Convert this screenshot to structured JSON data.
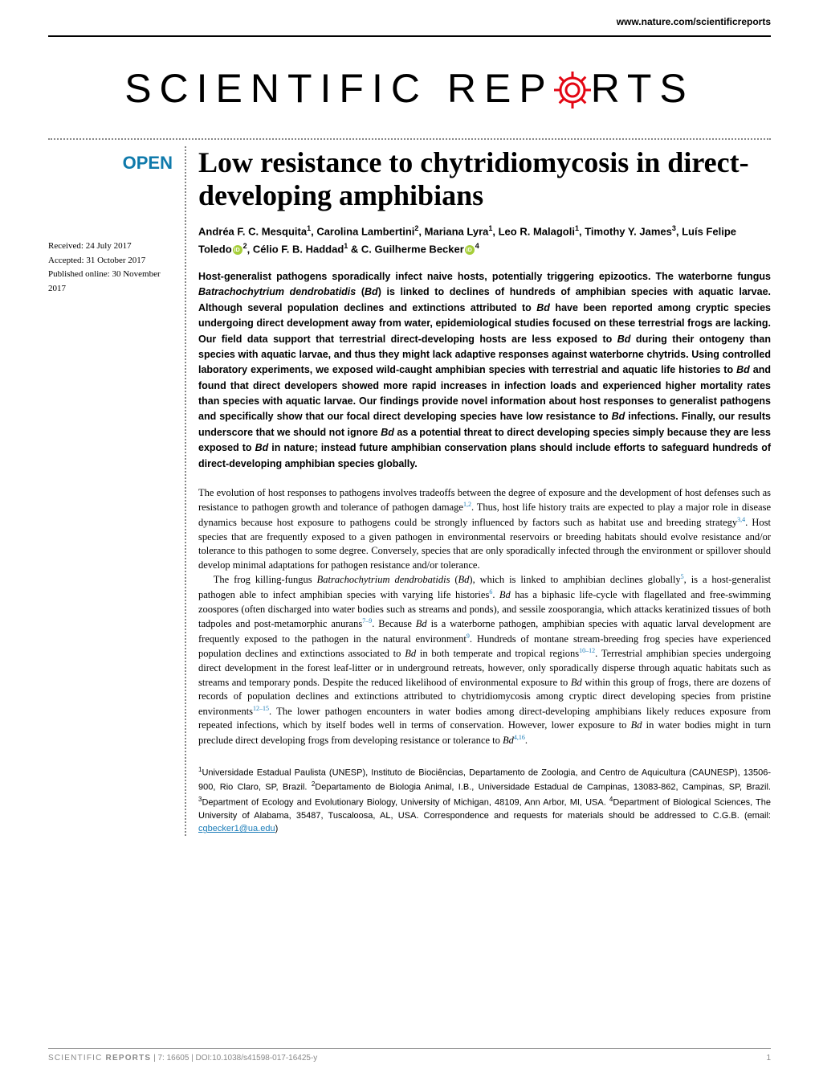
{
  "header": {
    "url": "www.nature.com/scientificreports"
  },
  "logo": {
    "part1": "SCIENTIFIC ",
    "part2": "REP",
    "part3": "RTS",
    "gear_color": "#e30613"
  },
  "open_badge": "OPEN",
  "meta": {
    "received": "Received: 24 July 2017",
    "accepted": "Accepted: 31 October 2017",
    "published": "Published online: 30 November 2017"
  },
  "title": "Low resistance to chytridiomycosis in direct-developing amphibians",
  "authors_html": "Andréa F. C. Mesquita<sup>1</sup>, Carolina Lambertini<sup>2</sup>, Mariana Lyra<sup>1</sup>, Leo R. Malagoli<sup>1</sup>, Timothy Y. James<sup>3</sup>, Luís Felipe Toledo<span class=\"orcid\"></span><sup>2</sup>, Célio F. B. Haddad<sup>1</sup> & C. Guilherme Becker<span class=\"orcid\"></span><sup>4</sup>",
  "abstract": "Host-generalist pathogens sporadically infect naive hosts, potentially triggering epizootics. The waterborne fungus <em>Batrachochytrium dendrobatidis</em> (<em>Bd</em>) is linked to declines of hundreds of amphibian species with aquatic larvae. Although several population declines and extinctions attributed to <em>Bd</em> have been reported among cryptic species undergoing direct development away from water, epidemiological studies focused on these terrestrial frogs are lacking. Our field data support that terrestrial direct-developing hosts are less exposed to <em>Bd</em> during their ontogeny than species with aquatic larvae, and thus they might lack adaptive responses against waterborne chytrids. Using controlled laboratory experiments, we exposed wild-caught amphibian species with terrestrial and aquatic life histories to <em>Bd</em> and found that direct developers showed more rapid increases in infection loads and experienced higher mortality rates than species with aquatic larvae. Our findings provide novel information about host responses to generalist pathogens and specifically show that our focal direct developing species have low resistance to <em>Bd</em> infections. Finally, our results underscore that we should not ignore <em>Bd</em> as a potential threat to direct developing species simply because they are less exposed to <em>Bd</em> in nature; instead future amphibian conservation plans should include efforts to safeguard hundreds of direct-developing amphibian species globally.",
  "body_p1": "The evolution of host responses to pathogens involves tradeoffs between the degree of exposure and the development of host defenses such as resistance to pathogen growth and tolerance of pathogen damage<sup>1,2</sup>. Thus, host life history traits are expected to play a major role in disease dynamics because host exposure to pathogens could be strongly influenced by factors such as habitat use and breeding strategy<sup>3,4</sup>. Host species that are frequently exposed to a given pathogen in environmental reservoirs or breeding habitats should evolve resistance and/or tolerance to this pathogen to some degree. Conversely, species that are only sporadically infected through the environment or spillover should develop minimal adaptations for pathogen resistance and/or tolerance.",
  "body_p2": "The frog killing-fungus <em>Batrachochytrium dendrobatidis</em> (<em>Bd</em>), which is linked to amphibian declines globally<sup>5</sup>, is a host-generalist pathogen able to infect amphibian species with varying life histories<sup>6</sup>. <em>Bd</em> has a biphasic life-cycle with flagellated and free-swimming zoospores (often discharged into water bodies such as streams and ponds), and sessile zoosporangia, which attacks keratinized tissues of both tadpoles and post-metamorphic anurans<sup>7–9</sup>. Because <em>Bd</em> is a waterborne pathogen, amphibian species with aquatic larval development are frequently exposed to the pathogen in the natural environment<sup>9</sup>. Hundreds of montane stream-breeding frog species have experienced population declines and extinctions associated to <em>Bd</em> in both temperate and tropical regions<sup>10–12</sup>. Terrestrial amphibian species undergoing direct development in the forest leaf-litter or in underground retreats, however, only sporadically disperse through aquatic habitats such as streams and temporary ponds. Despite the reduced likelihood of environmental exposure to <em>Bd</em> within this group of frogs, there are dozens of records of population declines and extinctions attributed to chytridiomycosis among cryptic direct developing species from pristine environments<sup>12–15</sup>. The lower pathogen encounters in water bodies among direct-developing amphibians likely reduces exposure from repeated infections, which by itself bodes well in terms of conservation. However, lower exposure to <em>Bd</em> in water bodies might in turn preclude direct developing frogs from developing resistance or tolerance to <em>Bd</em><sup>4,16</sup>.",
  "affiliations": "<sup>1</sup>Universidade Estadual Paulista (UNESP), Instituto de Biociências, Departamento de Zoologia, and Centro de Aquicultura (CAUNESP), 13506-900, Rio Claro, SP, Brazil. <sup>2</sup>Departamento de Biologia Animal, I.B., Universidade Estadual de Campinas, 13083-862, Campinas, SP, Brazil. <sup>3</sup>Department of Ecology and Evolutionary Biology, University of Michigan, 48109, Ann Arbor, MI, USA. <sup>4</sup>Department of Biological Sciences, The University of Alabama, 35487, Tuscaloosa, AL, USA. Correspondence and requests for materials should be addressed to C.G.B. (email: <span class=\"email\">cgbecker1@ua.edu</span>)",
  "footer": {
    "left_prefix": "SCIENTIFIC ",
    "left_bold": "REPORTS",
    "citation": " | 7: 16605 | DOI:10.1038/s41598-017-16425-y",
    "page": "1"
  },
  "colors": {
    "open_blue": "#0f7aab",
    "ref_blue": "#1a7cb8",
    "gear_red": "#e30613",
    "orcid_green": "#a6ce39",
    "footer_grey": "#888"
  }
}
